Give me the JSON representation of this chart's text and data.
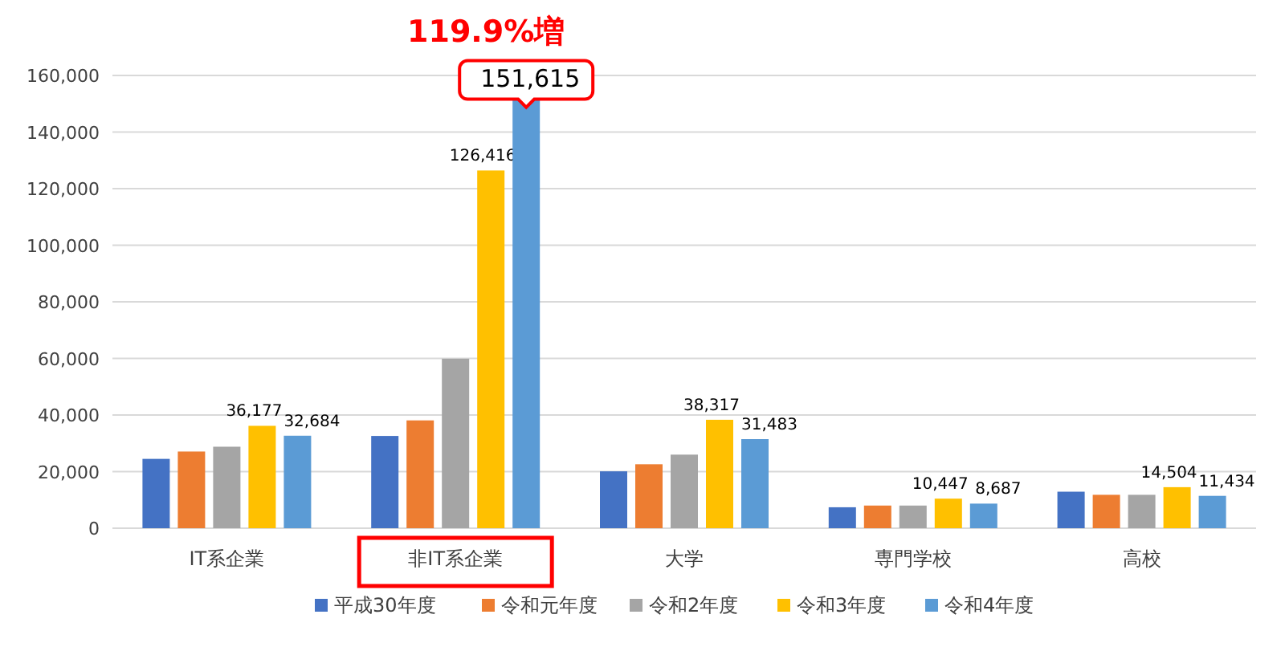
{
  "chart_data": {
    "type": "bar",
    "categories": [
      "IT系企業",
      "非IT系企業",
      "大学",
      "専門学校",
      "高校"
    ],
    "series": [
      {
        "name": "平成30年度",
        "color": "#4472c4",
        "values": [
          24500,
          32600,
          20100,
          7400,
          12900
        ]
      },
      {
        "name": "令和元年度",
        "color": "#ed7d31",
        "values": [
          27100,
          38100,
          22600,
          8000,
          11800
        ]
      },
      {
        "name": "令和2年度",
        "color": "#a5a5a5",
        "values": [
          28800,
          59900,
          26000,
          8000,
          11800
        ]
      },
      {
        "name": "令和3年度",
        "color": "#ffc000",
        "values": [
          36177,
          126416,
          38317,
          10447,
          14504
        ],
        "value_labels": [
          "36,177",
          "126,416",
          "38,317",
          "10,447",
          "14,504"
        ]
      },
      {
        "name": "令和4年度",
        "color": "#5b9bd5",
        "values": [
          32684,
          151615,
          31483,
          8687,
          11434
        ],
        "value_labels": [
          "32,684",
          "151,615",
          "31,483",
          "8,687",
          "11,434"
        ]
      }
    ],
    "ylim": [
      0,
      160000
    ],
    "yticks": [
      {
        "value": 0,
        "label": "0"
      },
      {
        "value": 20000,
        "label": "20,000"
      },
      {
        "value": 40000,
        "label": "40,000"
      },
      {
        "value": 60000,
        "label": "60,000"
      },
      {
        "value": 80000,
        "label": "80,000"
      },
      {
        "value": 100000,
        "label": "100,000"
      },
      {
        "value": 120000,
        "label": "120,000"
      },
      {
        "value": 140000,
        "label": "140,000"
      },
      {
        "value": 160000,
        "label": "160,000"
      }
    ],
    "grid": "y",
    "legend": "bottom",
    "annotations": [
      "119.9%増"
    ]
  }
}
